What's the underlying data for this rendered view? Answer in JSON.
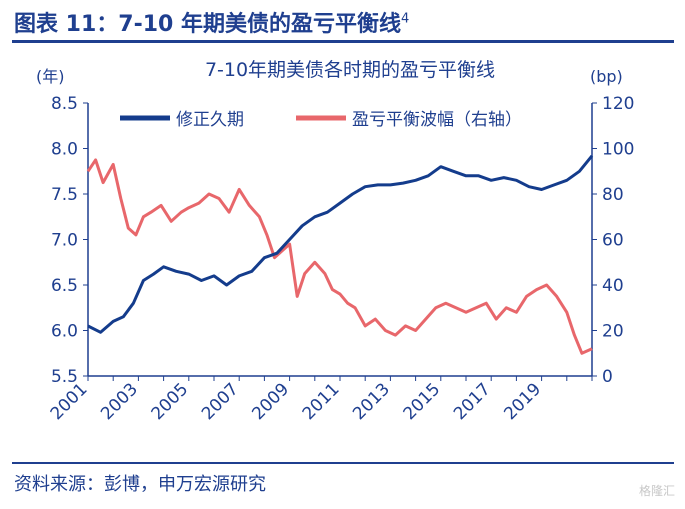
{
  "header": {
    "title": "图表 11：7-10 年期美债的盈亏平衡线",
    "footnote_marker": "4"
  },
  "source": "资料来源：彭博，申万宏源研究",
  "watermark": "格隆汇",
  "colors": {
    "brand": "#1f3f8f",
    "series_duration": "#143c8c",
    "series_breakeven": "#e8676b",
    "axis_text": "#1f3f8f"
  },
  "chart_data": {
    "type": "line",
    "title": "7-10年期美债各时期的盈亏平衡线",
    "legend_position": "top",
    "grid": false,
    "x_axis": {
      "range": [
        2001,
        2021
      ],
      "ticks": [
        "2001",
        "2003",
        "2005",
        "2007",
        "2009",
        "2011",
        "2013",
        "2015",
        "2017",
        "2019"
      ]
    },
    "y_left": {
      "unit": "(年)",
      "range": [
        5.5,
        8.5
      ],
      "ticks": [
        "5.5",
        "6.0",
        "6.5",
        "7.0",
        "7.5",
        "8.0",
        "8.5"
      ]
    },
    "y_right": {
      "unit": "(bp)",
      "range": [
        0,
        120
      ],
      "ticks": [
        "0",
        "20",
        "40",
        "60",
        "80",
        "100",
        "120"
      ]
    },
    "series": [
      {
        "name": "修正久期",
        "axis": "left",
        "x": [
          2001.0,
          2001.5,
          2002.0,
          2002.4,
          2002.8,
          2003.2,
          2003.6,
          2004.0,
          2004.5,
          2005.0,
          2005.5,
          2006.0,
          2006.5,
          2007.0,
          2007.5,
          2008.0,
          2008.5,
          2009.0,
          2009.5,
          2010.0,
          2010.5,
          2011.0,
          2011.5,
          2012.0,
          2012.5,
          2013.0,
          2013.5,
          2014.0,
          2014.5,
          2015.0,
          2015.5,
          2016.0,
          2016.5,
          2017.0,
          2017.5,
          2018.0,
          2018.5,
          2019.0,
          2019.5,
          2020.0,
          2020.5,
          2021.0
        ],
        "values": [
          6.05,
          5.98,
          6.1,
          6.15,
          6.3,
          6.55,
          6.62,
          6.7,
          6.65,
          6.62,
          6.55,
          6.6,
          6.5,
          6.6,
          6.65,
          6.8,
          6.85,
          7.0,
          7.15,
          7.25,
          7.3,
          7.4,
          7.5,
          7.58,
          7.6,
          7.6,
          7.62,
          7.65,
          7.7,
          7.8,
          7.75,
          7.7,
          7.7,
          7.65,
          7.68,
          7.65,
          7.58,
          7.55,
          7.6,
          7.65,
          7.75,
          7.92
        ]
      },
      {
        "name": "盈亏平衡波幅（右轴）",
        "axis": "right",
        "x": [
          2001.0,
          2001.3,
          2001.6,
          2002.0,
          2002.3,
          2002.6,
          2002.9,
          2003.2,
          2003.5,
          2003.9,
          2004.3,
          2004.7,
          2005.0,
          2005.4,
          2005.8,
          2006.2,
          2006.6,
          2007.0,
          2007.4,
          2007.8,
          2008.1,
          2008.4,
          2008.7,
          2009.0,
          2009.3,
          2009.6,
          2010.0,
          2010.4,
          2010.7,
          2011.0,
          2011.3,
          2011.6,
          2012.0,
          2012.4,
          2012.8,
          2013.2,
          2013.6,
          2014.0,
          2014.4,
          2014.8,
          2015.2,
          2015.6,
          2016.0,
          2016.4,
          2016.8,
          2017.2,
          2017.6,
          2018.0,
          2018.4,
          2018.8,
          2019.2,
          2019.6,
          2020.0,
          2020.3,
          2020.6,
          2021.0
        ],
        "values": [
          90,
          95,
          85,
          93,
          78,
          65,
          62,
          70,
          72,
          75,
          68,
          72,
          74,
          76,
          80,
          78,
          72,
          82,
          75,
          70,
          62,
          52,
          55,
          58,
          35,
          45,
          50,
          45,
          38,
          36,
          32,
          30,
          22,
          25,
          20,
          18,
          22,
          20,
          25,
          30,
          32,
          30,
          28,
          30,
          32,
          25,
          30,
          28,
          35,
          38,
          40,
          35,
          28,
          18,
          10,
          12
        ]
      }
    ]
  }
}
